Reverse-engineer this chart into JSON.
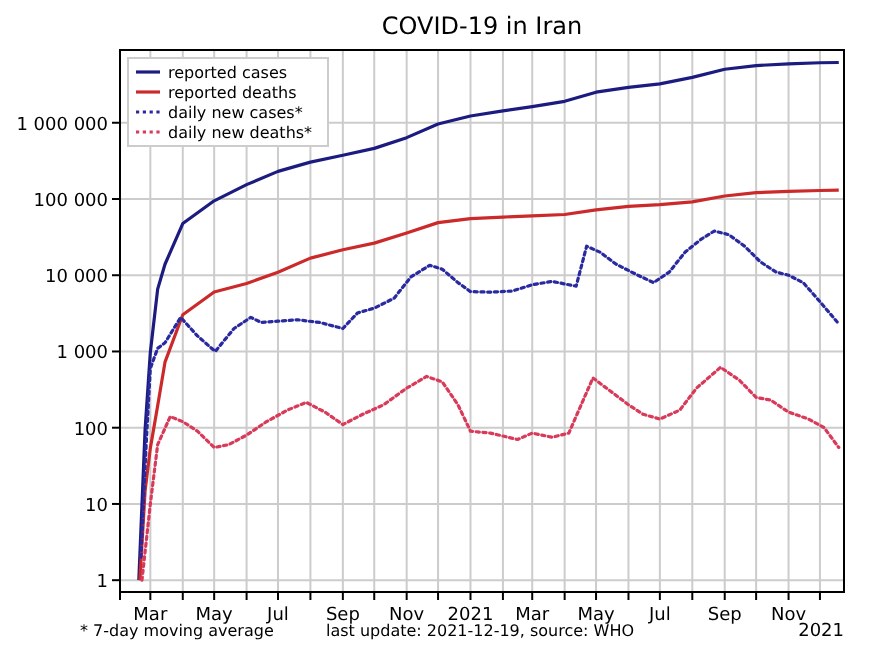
{
  "chart_data": {
    "type": "line",
    "title": "COVID-19 in Iran",
    "log": "y",
    "grid": true,
    "legend": "top left",
    "marker": "none",
    "xlim": [
      "2020-02-01",
      "2021-12-24"
    ],
    "xticks": [
      {
        "value": "2020-02-01",
        "label": null
      },
      {
        "value": "2020-03-01",
        "label": "Mar"
      },
      {
        "value": "2020-04-01",
        "label": null
      },
      {
        "value": "2020-05-01",
        "label": "May"
      },
      {
        "value": "2020-06-01",
        "label": null
      },
      {
        "value": "2020-07-01",
        "label": "Jul"
      },
      {
        "value": "2020-08-01",
        "label": null
      },
      {
        "value": "2020-09-01",
        "label": "Sep"
      },
      {
        "value": "2020-10-01",
        "label": null
      },
      {
        "value": "2020-11-01",
        "label": "Nov"
      },
      {
        "value": "2020-12-01",
        "label": null
      },
      {
        "value": "2021-01-01",
        "label": "2021"
      },
      {
        "value": "2021-02-01",
        "label": null
      },
      {
        "value": "2021-03-01",
        "label": "Mar"
      },
      {
        "value": "2021-04-01",
        "label": null
      },
      {
        "value": "2021-05-01",
        "label": "May"
      },
      {
        "value": "2021-06-01",
        "label": null
      },
      {
        "value": "2021-07-01",
        "label": "Jul"
      },
      {
        "value": "2021-08-01",
        "label": null
      },
      {
        "value": "2021-09-01",
        "label": "Sep"
      },
      {
        "value": "2021-10-01",
        "label": null
      },
      {
        "value": "2021-11-01",
        "label": "Nov"
      },
      {
        "value": "2021-12-01",
        "label": null
      }
    ],
    "ylim": [
      0.7,
      9000000
    ],
    "yticks": [
      1,
      10,
      100,
      {
        "value": 1000,
        "label": "1 000"
      },
      {
        "value": 10000,
        "label": "10 000"
      },
      {
        "value": 100000,
        "label": "100 000"
      },
      {
        "value": 1000000,
        "label": "1 000 000"
      }
    ],
    "annotations": [
      "* 7-day moving average",
      "last update: 2021-12-19, source: WHO",
      "2021"
    ],
    "series": [
      {
        "name": "reported cases",
        "color": "#1c1c80",
        "line_style": "solid",
        "x": [
          "2020-02-19",
          "2020-02-25",
          "2020-03-01",
          "2020-03-08",
          "2020-03-15",
          "2020-04-01",
          "2020-05-01",
          "2020-06-01",
          "2020-07-01",
          "2020-08-01",
          "2020-09-01",
          "2020-10-01",
          "2020-11-01",
          "2020-12-01",
          "2021-01-01",
          "2021-02-01",
          "2021-03-01",
          "2021-04-01",
          "2021-05-01",
          "2021-06-01",
          "2021-07-01",
          "2021-08-01",
          "2021-09-01",
          "2021-10-01",
          "2021-11-01",
          "2021-12-01",
          "2021-12-19"
        ],
        "values": [
          1,
          95,
          978,
          6566,
          13938,
          47593,
          94640,
          154445,
          230211,
          304204,
          375212,
          461044,
          637712,
          962070,
          1225142,
          1430000,
          1631000,
          1911000,
          2516000,
          2913000,
          3240000,
          3940000,
          5030000,
          5620000,
          5930000,
          6120000,
          6170000
        ]
      },
      {
        "name": "reported deaths",
        "color": "#cc2a2a",
        "line_style": "solid",
        "x": [
          "2020-02-20",
          "2020-02-25",
          "2020-03-01",
          "2020-03-08",
          "2020-03-15",
          "2020-04-01",
          "2020-05-01",
          "2020-06-01",
          "2020-07-01",
          "2020-08-01",
          "2020-09-01",
          "2020-10-01",
          "2020-11-01",
          "2020-12-01",
          "2021-01-01",
          "2021-02-01",
          "2021-03-01",
          "2021-04-01",
          "2021-05-01",
          "2021-06-01",
          "2021-07-01",
          "2021-08-01",
          "2021-09-01",
          "2021-10-01",
          "2021-11-01",
          "2021-12-01",
          "2021-12-19"
        ],
        "values": [
          1,
          15,
          54,
          194,
          724,
          3036,
          6028,
          7797,
          10958,
          16766,
          21571,
          26380,
          35738,
          48990,
          55223,
          58000,
          60200,
          62600,
          72000,
          80000,
          84300,
          91600,
          109500,
          121000,
          126000,
          129200,
          130800
        ]
      },
      {
        "name": "daily new cases*",
        "color": "#2a2aa0",
        "line_style": "dotted",
        "x": [
          "2020-02-21",
          "2020-02-26",
          "2020-03-01",
          "2020-03-08",
          "2020-03-15",
          "2020-03-30",
          "2020-04-15",
          "2020-05-02",
          "2020-05-20",
          "2020-06-05",
          "2020-06-15",
          "2020-07-01",
          "2020-07-20",
          "2020-08-10",
          "2020-09-01",
          "2020-09-15",
          "2020-10-01",
          "2020-10-20",
          "2020-11-05",
          "2020-11-23",
          "2020-12-05",
          "2020-12-20",
          "2021-01-01",
          "2021-01-20",
          "2021-02-10",
          "2021-03-01",
          "2021-03-20",
          "2021-04-05",
          "2021-04-12",
          "2021-04-22",
          "2021-05-05",
          "2021-05-20",
          "2021-06-10",
          "2021-06-25",
          "2021-07-10",
          "2021-07-25",
          "2021-08-10",
          "2021-08-22",
          "2021-09-05",
          "2021-09-20",
          "2021-10-05",
          "2021-10-20",
          "2021-11-01",
          "2021-11-15",
          "2021-12-01",
          "2021-12-19"
        ],
        "values": [
          2,
          60,
          600,
          1100,
          1300,
          2800,
          1600,
          1000,
          2000,
          2800,
          2400,
          2500,
          2600,
          2400,
          2000,
          3200,
          3700,
          5000,
          9500,
          13500,
          12000,
          8000,
          6100,
          6000,
          6200,
          7500,
          8300,
          7500,
          7200,
          24000,
          20000,
          14000,
          10000,
          8000,
          11000,
          20000,
          30000,
          38000,
          34000,
          24000,
          15000,
          11000,
          10000,
          8000,
          4500,
          2300
        ]
      },
      {
        "name": "daily new deaths*",
        "color": "#d83a5a",
        "line_style": "dotted",
        "x": [
          "2020-02-22",
          "2020-03-01",
          "2020-03-08",
          "2020-03-20",
          "2020-04-01",
          "2020-04-15",
          "2020-05-01",
          "2020-05-15",
          "2020-06-01",
          "2020-06-20",
          "2020-07-10",
          "2020-07-28",
          "2020-08-15",
          "2020-09-01",
          "2020-09-20",
          "2020-10-10",
          "2020-11-01",
          "2020-11-20",
          "2020-12-05",
          "2020-12-20",
          "2021-01-01",
          "2021-01-20",
          "2021-02-15",
          "2021-03-01",
          "2021-03-20",
          "2021-04-05",
          "2021-04-28",
          "2021-05-15",
          "2021-06-01",
          "2021-06-15",
          "2021-07-01",
          "2021-07-20",
          "2021-08-05",
          "2021-08-28",
          "2021-09-15",
          "2021-10-01",
          "2021-10-15",
          "2021-11-01",
          "2021-11-20",
          "2021-12-05",
          "2021-12-19"
        ],
        "values": [
          1,
          10,
          60,
          140,
          120,
          90,
          55,
          60,
          80,
          120,
          170,
          215,
          160,
          110,
          150,
          200,
          330,
          470,
          400,
          200,
          90,
          85,
          70,
          85,
          75,
          85,
          450,
          300,
          200,
          150,
          130,
          170,
          330,
          620,
          420,
          250,
          230,
          160,
          130,
          100,
          55
        ]
      }
    ]
  }
}
